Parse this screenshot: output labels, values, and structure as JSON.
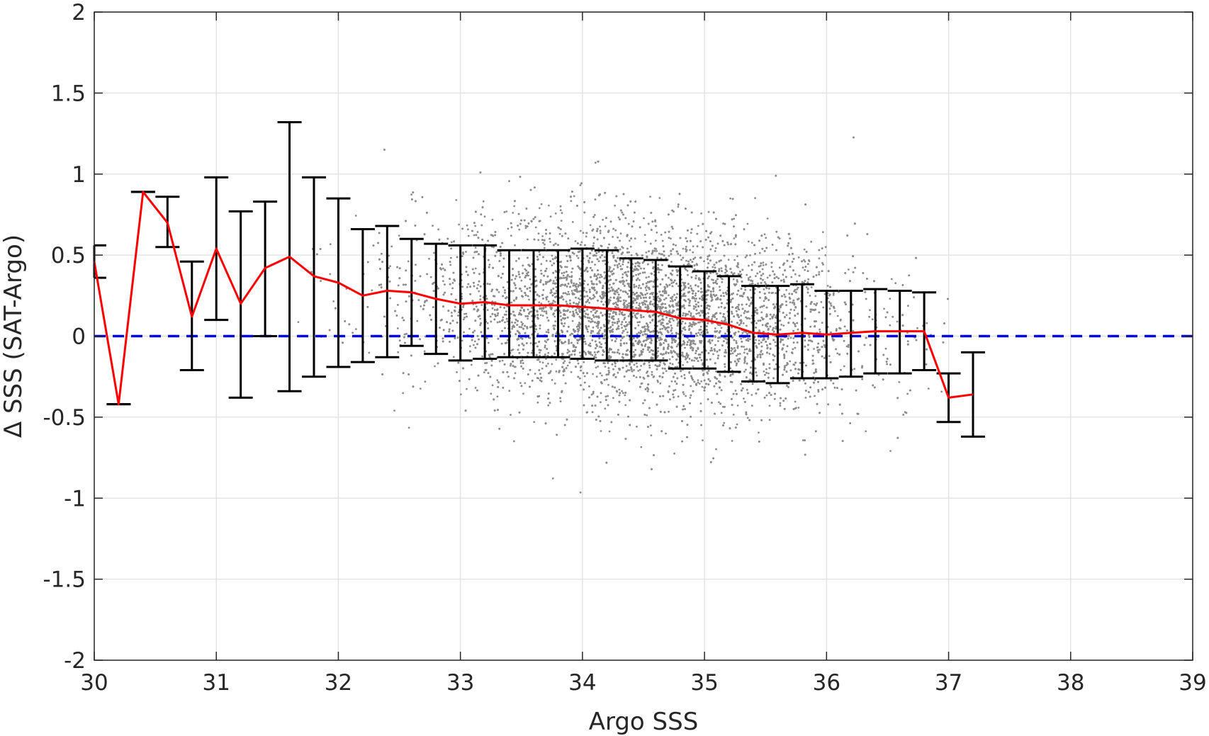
{
  "chart_data": {
    "type": "scatter",
    "xlabel": "Argo SSS",
    "ylabel": "Δ SSS (SAT-Argo)",
    "xlim": [
      30,
      39
    ],
    "ylim": [
      -2,
      2
    ],
    "xticks": [
      30,
      31,
      32,
      33,
      34,
      35,
      36,
      37,
      38,
      39
    ],
    "xtick_labels": [
      "30",
      "31",
      "32",
      "33",
      "34",
      "35",
      "36",
      "37",
      "38",
      "39"
    ],
    "yticks": [
      -2,
      -1.5,
      -1,
      -0.5,
      0,
      0.5,
      1,
      1.5,
      2
    ],
    "ytick_labels": [
      "-2",
      "-1.5",
      "-1",
      "-0.5",
      "0",
      "0.5",
      "1",
      "1.5",
      "2"
    ],
    "grid": true,
    "colors": {
      "scatter": "#8c8c8c",
      "mean_line": "#ff0000",
      "error_bars": "#000000",
      "zero_line": "#0000dd",
      "grid": "#e0e0e0",
      "axes": "#262626"
    },
    "scatter_cloud": {
      "description_only": false,
      "center_x": 34.5,
      "center_y": 0.1,
      "x_spread": 0.9,
      "y_spread": 0.28,
      "x_range": [
        31.5,
        37.0
      ],
      "approx_points": 9000
    },
    "binned_series": {
      "x": [
        30.0,
        30.2,
        30.4,
        30.6,
        30.8,
        31.0,
        31.2,
        31.4,
        31.6,
        31.8,
        32.0,
        32.2,
        32.4,
        32.6,
        32.8,
        33.0,
        33.2,
        33.4,
        33.6,
        33.8,
        34.0,
        34.2,
        34.4,
        34.6,
        34.8,
        35.0,
        35.2,
        35.4,
        35.6,
        35.8,
        36.0,
        36.2,
        36.4,
        36.6,
        36.8,
        37.0,
        37.2
      ],
      "mean": [
        0.46,
        -0.42,
        0.89,
        0.7,
        0.12,
        0.54,
        0.2,
        0.42,
        0.49,
        0.37,
        0.33,
        0.25,
        0.28,
        0.27,
        0.23,
        0.2,
        0.21,
        0.19,
        0.19,
        0.19,
        0.18,
        0.17,
        0.16,
        0.15,
        0.11,
        0.1,
        0.07,
        0.02,
        0.01,
        0.02,
        0.01,
        0.02,
        0.03,
        0.03,
        0.03,
        -0.38,
        -0.36
      ],
      "upper": [
        0.56,
        -0.42,
        0.89,
        0.86,
        0.46,
        0.98,
        0.77,
        0.83,
        1.32,
        0.98,
        0.85,
        0.66,
        0.68,
        0.6,
        0.57,
        0.56,
        0.56,
        0.53,
        0.53,
        0.53,
        0.54,
        0.53,
        0.48,
        0.47,
        0.43,
        0.4,
        0.37,
        0.31,
        0.31,
        0.32,
        0.28,
        0.28,
        0.29,
        0.28,
        0.27,
        -0.23,
        -0.1
      ],
      "lower": [
        0.36,
        -0.42,
        0.89,
        0.55,
        -0.21,
        0.1,
        -0.38,
        0.0,
        -0.34,
        -0.25,
        -0.19,
        -0.16,
        -0.13,
        -0.06,
        -0.11,
        -0.15,
        -0.14,
        -0.13,
        -0.13,
        -0.13,
        -0.14,
        -0.15,
        -0.15,
        -0.15,
        -0.2,
        -0.2,
        -0.22,
        -0.28,
        -0.29,
        -0.26,
        -0.26,
        -0.25,
        -0.23,
        -0.23,
        -0.21,
        -0.53,
        -0.62
      ]
    },
    "zero_reference": 0
  }
}
